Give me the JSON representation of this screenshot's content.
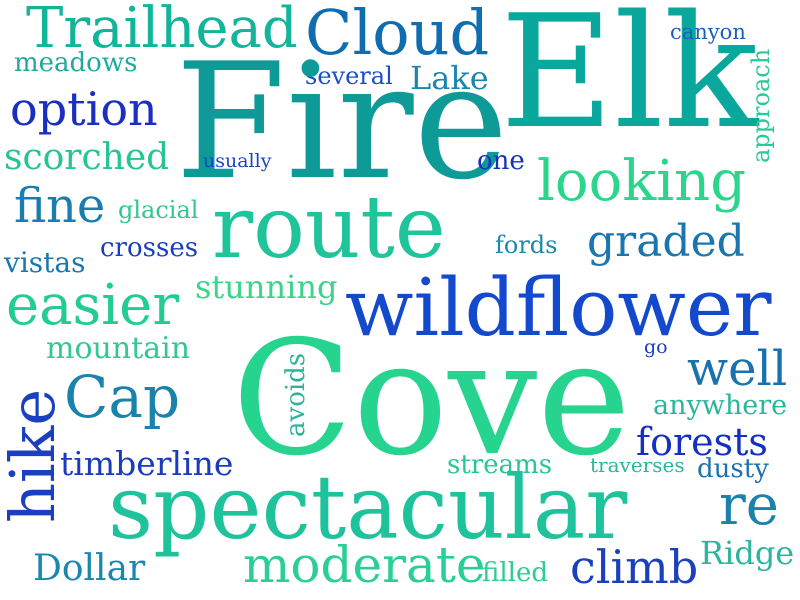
{
  "words": [
    {
      "text": "Trailhead",
      "color": "#12b59a"
    },
    {
      "text": "Cloud",
      "color": "#0f6db0"
    },
    {
      "text": "Elk",
      "color": "#0aa79d"
    },
    {
      "text": "canyon",
      "color": "#1a5fb8"
    },
    {
      "text": "approach",
      "color": "#28c99a"
    },
    {
      "text": "meadows",
      "color": "#1faa9e"
    },
    {
      "text": "several",
      "color": "#1c4fc4"
    },
    {
      "text": "Lake",
      "color": "#1a86ad"
    },
    {
      "text": "Fire",
      "color": "#0e9b98"
    },
    {
      "text": "option",
      "color": "#1a2fc0"
    },
    {
      "text": "scorched",
      "color": "#27c395"
    },
    {
      "text": "usually",
      "color": "#1b46c2"
    },
    {
      "text": "one",
      "color": "#1430c0"
    },
    {
      "text": "looking",
      "color": "#2bd58c"
    },
    {
      "text": "fine",
      "color": "#1b7cb0"
    },
    {
      "text": "glacial",
      "color": "#2ec98f"
    },
    {
      "text": "route",
      "color": "#1fc49a"
    },
    {
      "text": "graded",
      "color": "#1a77ae"
    },
    {
      "text": "fords",
      "color": "#1a8aa8"
    },
    {
      "text": "crosses",
      "color": "#1a3dc0"
    },
    {
      "text": "vistas",
      "color": "#1878ae"
    },
    {
      "text": "stunning",
      "color": "#3bd488"
    },
    {
      "text": "easier",
      "color": "#22cc94"
    },
    {
      "text": "wildflower",
      "color": "#1349cc"
    },
    {
      "text": "mountain",
      "color": "#34c796"
    },
    {
      "text": "go",
      "color": "#1a3dc0"
    },
    {
      "text": "avoids",
      "color": "#2bb49c"
    },
    {
      "text": "Cove",
      "color": "#26d48f"
    },
    {
      "text": "well",
      "color": "#1a72ac"
    },
    {
      "text": "Cap",
      "color": "#1a83ac"
    },
    {
      "text": "anywhere",
      "color": "#2ab59c"
    },
    {
      "text": "hike",
      "color": "#1a3fc0"
    },
    {
      "text": "forests",
      "color": "#1430c0"
    },
    {
      "text": "timberline",
      "color": "#1a3bbb"
    },
    {
      "text": "streams",
      "color": "#28c49a"
    },
    {
      "text": "traverses",
      "color": "#2ab59c"
    },
    {
      "text": "dusty",
      "color": "#1a72ac"
    },
    {
      "text": "spectacular",
      "color": "#1fc39b"
    },
    {
      "text": "re",
      "color": "#1a82ad"
    },
    {
      "text": "Dollar",
      "color": "#1a88ad"
    },
    {
      "text": "moderate",
      "color": "#29cf95"
    },
    {
      "text": "filled",
      "color": "#2ecc90"
    },
    {
      "text": "climb",
      "color": "#1a40c0"
    },
    {
      "text": "Ridge",
      "color": "#2bb59c"
    }
  ]
}
